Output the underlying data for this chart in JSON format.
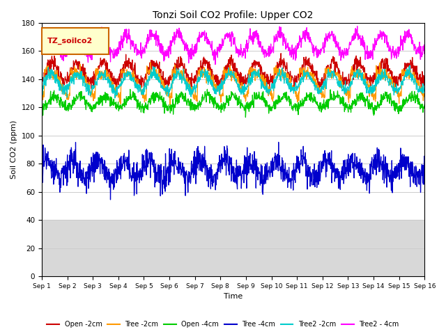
{
  "title": "Tonzi Soil CO2 Profile: Upper CO2",
  "xlabel": "Time",
  "ylabel": "Soil CO2 (ppm)",
  "ylim": [
    0,
    180
  ],
  "legend_label": "TZ_soilco2",
  "x_tick_labels": [
    "Sep 1",
    "Sep 2",
    "Sep 3",
    "Sep 4",
    "Sep 5",
    "Sep 6",
    "Sep 7",
    "Sep 8",
    "Sep 9",
    "Sep 10",
    "Sep 11",
    "Sep 12",
    "Sep 13",
    "Sep 14",
    "Sep 15",
    "Sep 16"
  ],
  "series": [
    {
      "label": "Open -2cm",
      "color": "#cc0000"
    },
    {
      "label": "Tree -2cm",
      "color": "#ff9900"
    },
    {
      "label": "Open -4cm",
      "color": "#00cc00"
    },
    {
      "label": "Tree -4cm",
      "color": "#0000cc"
    },
    {
      "label": "Tree2 -2cm",
      "color": "#00cccc"
    },
    {
      "label": "Tree2 - 4cm",
      "color": "#ff00ff"
    }
  ],
  "figsize": [
    6.4,
    4.8
  ],
  "dpi": 100,
  "shade_below": 40,
  "shade_color": "#d8d8d8",
  "grid_color": "#cccccc",
  "legend_box_facecolor": "#ffffcc",
  "legend_box_edgecolor": "#cc6600",
  "legend_text_color": "#cc0000"
}
